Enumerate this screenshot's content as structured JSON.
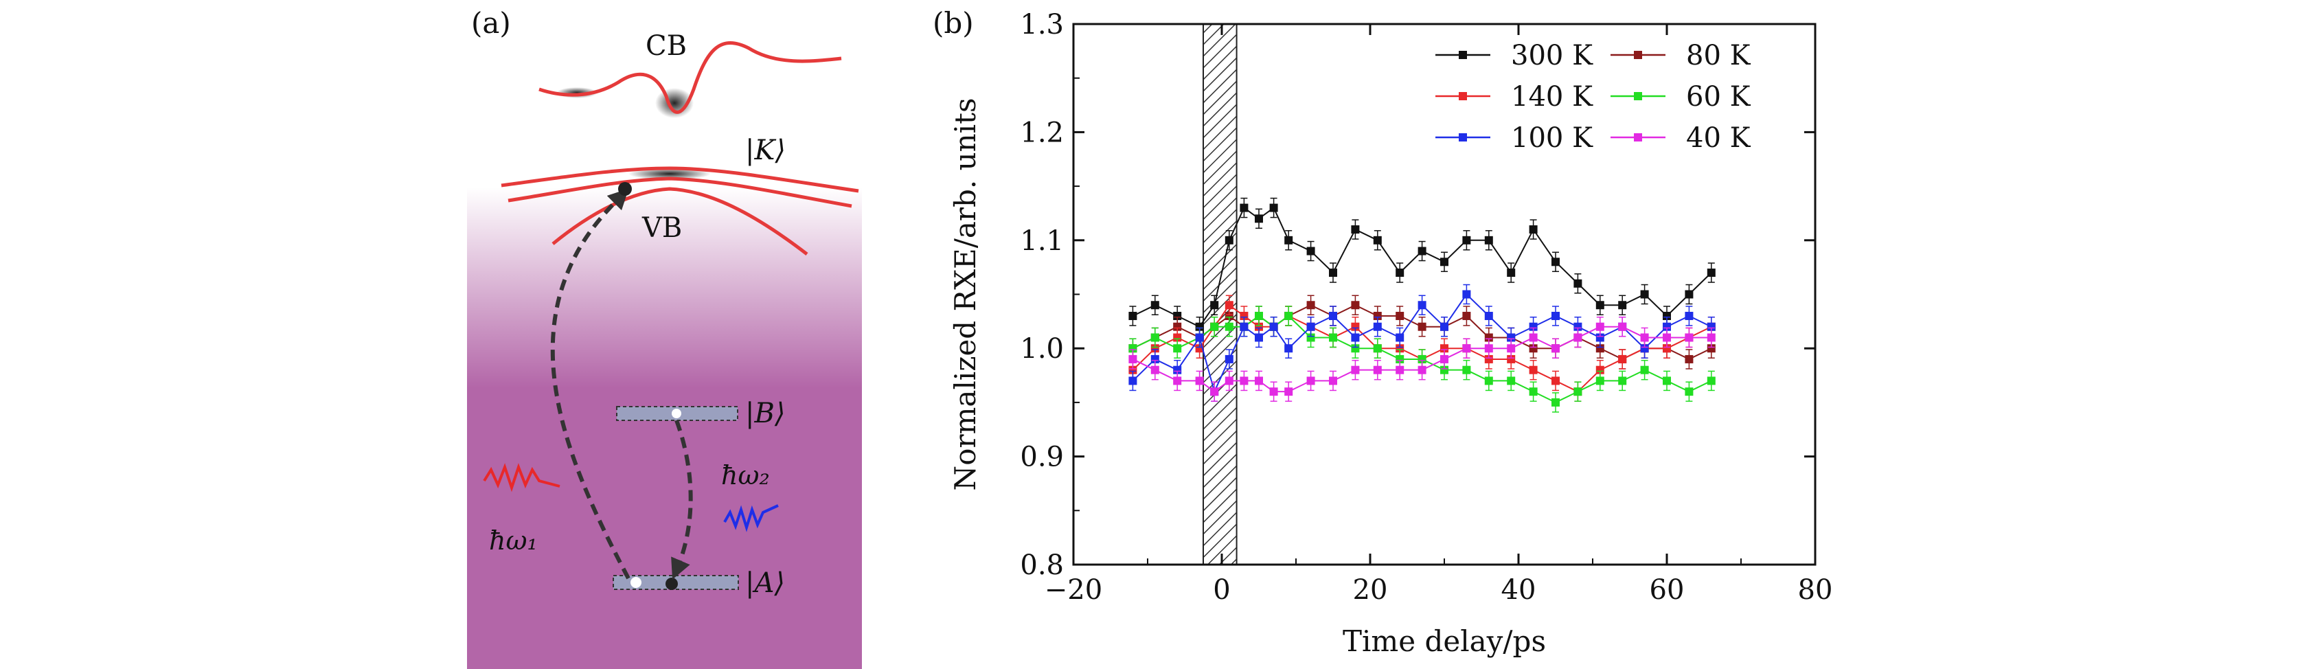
{
  "panel_a": {
    "label": "(a)",
    "cb_label": "CB",
    "vb_label": "VB",
    "state_K": "|K⟩",
    "state_B": "|B⟩",
    "state_A": "|A⟩",
    "photon1": "ħω₁",
    "photon2": "ħω₂",
    "colors": {
      "band": "#e53a3a",
      "photon1": "#e8282a",
      "photon2": "#1f2ee8",
      "bg": "#b366a8",
      "level": "#9aa0bf"
    }
  },
  "panel_b": {
    "label": "(b)"
  },
  "chart_data": {
    "type": "scatter",
    "xlabel": "Time delay/ps",
    "ylabel": "Normalized RXE/arb. units",
    "xlim": [
      -20,
      80
    ],
    "ylim": [
      0.8,
      1.3
    ],
    "x_ticks": [
      -20,
      0,
      20,
      40,
      60,
      80
    ],
    "x_tick_labels": [
      "−20",
      "0",
      "20",
      "40",
      "60",
      "80"
    ],
    "y_ticks": [
      0.8,
      0.9,
      1.0,
      1.1,
      1.2,
      1.3
    ],
    "y_tick_labels": [
      "0.8",
      "0.9",
      "1.0",
      "1.1",
      "1.2",
      "1.3"
    ],
    "shaded_region": [
      -2.5,
      2
    ],
    "legend_position": "top-right",
    "series": [
      {
        "name": "300 K",
        "color": "#111111",
        "x": [
          -12,
          -9,
          -6,
          -3,
          -1,
          1,
          3,
          5,
          7,
          9,
          12,
          15,
          18,
          21,
          24,
          27,
          30,
          33,
          36,
          39,
          42,
          45,
          48,
          51,
          54,
          57,
          60,
          63,
          66
        ],
        "y": [
          1.03,
          1.04,
          1.03,
          1.02,
          1.04,
          1.1,
          1.13,
          1.12,
          1.13,
          1.1,
          1.09,
          1.07,
          1.11,
          1.1,
          1.07,
          1.09,
          1.08,
          1.1,
          1.1,
          1.07,
          1.11,
          1.08,
          1.06,
          1.04,
          1.04,
          1.05,
          1.03,
          1.05,
          1.07
        ]
      },
      {
        "name": "80 K",
        "color": "#8b1a1a",
        "x": [
          -12,
          -9,
          -6,
          -3,
          -1,
          1,
          3,
          5,
          7,
          9,
          12,
          15,
          18,
          21,
          24,
          27,
          30,
          33,
          36,
          39,
          42,
          45,
          48,
          51,
          54,
          57,
          60,
          63,
          66
        ],
        "y": [
          1.0,
          1.01,
          1.02,
          1.01,
          1.02,
          1.03,
          1.02,
          1.03,
          1.02,
          1.03,
          1.04,
          1.03,
          1.04,
          1.03,
          1.03,
          1.02,
          1.02,
          1.03,
          1.01,
          1.01,
          1.0,
          1.0,
          1.01,
          1.0,
          0.99,
          1.0,
          1.0,
          0.99,
          1.0
        ]
      },
      {
        "name": "140 K",
        "color": "#e8282a",
        "x": [
          -12,
          -9,
          -6,
          -3,
          -1,
          1,
          3,
          5,
          7,
          9,
          12,
          15,
          18,
          21,
          24,
          27,
          30,
          33,
          36,
          39,
          42,
          45,
          48,
          51,
          54,
          57,
          60,
          63,
          66
        ],
        "y": [
          0.98,
          1.0,
          1.01,
          1.0,
          1.02,
          1.04,
          1.03,
          1.02,
          1.02,
          1.03,
          1.02,
          1.01,
          1.02,
          1.0,
          1.0,
          0.99,
          1.0,
          1.0,
          0.99,
          0.99,
          0.98,
          0.97,
          0.96,
          0.98,
          0.99,
          1.0,
          1.0,
          1.01,
          1.02
        ]
      },
      {
        "name": "60 K",
        "color": "#22dd22",
        "x": [
          -12,
          -9,
          -6,
          -3,
          -1,
          1,
          3,
          5,
          7,
          9,
          12,
          15,
          18,
          21,
          24,
          27,
          30,
          33,
          36,
          39,
          42,
          45,
          48,
          51,
          54,
          57,
          60,
          63,
          66
        ],
        "y": [
          1.0,
          1.01,
          1.0,
          1.01,
          1.02,
          1.02,
          1.02,
          1.03,
          1.02,
          1.03,
          1.01,
          1.01,
          1.0,
          1.0,
          0.99,
          0.99,
          0.98,
          0.98,
          0.97,
          0.97,
          0.96,
          0.95,
          0.96,
          0.97,
          0.97,
          0.98,
          0.97,
          0.96,
          0.97
        ]
      },
      {
        "name": "100 K",
        "color": "#1f2ee8",
        "x": [
          -12,
          -9,
          -6,
          -3,
          -1,
          1,
          3,
          5,
          7,
          9,
          12,
          15,
          18,
          21,
          24,
          27,
          30,
          33,
          36,
          39,
          42,
          45,
          48,
          51,
          54,
          57,
          60,
          63,
          66
        ],
        "y": [
          0.97,
          0.99,
          0.98,
          1.01,
          0.96,
          0.99,
          1.02,
          1.01,
          1.02,
          1.0,
          1.02,
          1.03,
          1.01,
          1.02,
          1.01,
          1.04,
          1.02,
          1.05,
          1.03,
          1.01,
          1.02,
          1.03,
          1.02,
          1.01,
          1.02,
          1.0,
          1.02,
          1.03,
          1.02
        ]
      },
      {
        "name": "40 K",
        "color": "#e22ae2",
        "x": [
          -12,
          -9,
          -6,
          -3,
          -1,
          1,
          3,
          5,
          7,
          9,
          12,
          15,
          18,
          21,
          24,
          27,
          30,
          33,
          36,
          39,
          42,
          45,
          48,
          51,
          54,
          57,
          60,
          63,
          66
        ],
        "y": [
          0.99,
          0.98,
          0.97,
          0.97,
          0.96,
          0.97,
          0.97,
          0.97,
          0.96,
          0.96,
          0.97,
          0.97,
          0.98,
          0.98,
          0.98,
          0.98,
          0.99,
          1.0,
          1.0,
          1.0,
          1.01,
          1.0,
          1.01,
          1.02,
          1.02,
          1.01,
          1.01,
          1.01,
          1.01
        ]
      }
    ]
  }
}
